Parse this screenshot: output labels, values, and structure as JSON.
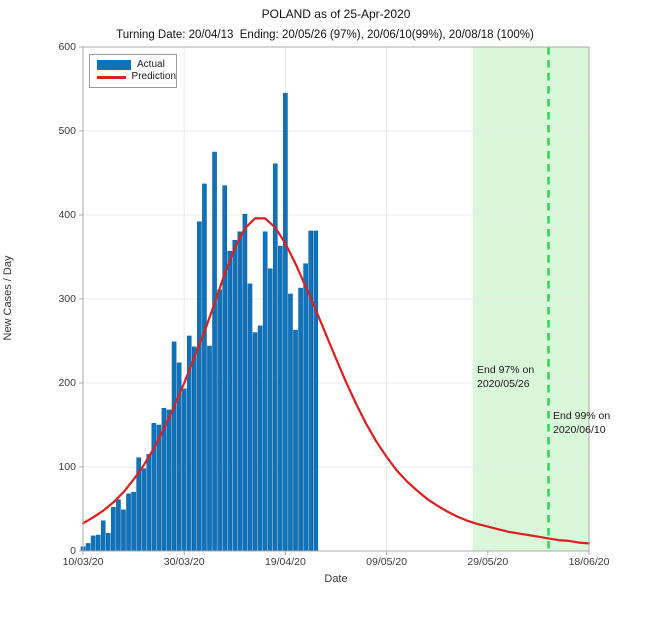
{
  "header": {
    "title": "POLAND as of 25-Apr-2020",
    "subtitle": "Turning Date: 20/04/13  Ending: 20/05/26 (97%), 20/06/10(99%), 20/08/18 (100%)"
  },
  "axes": {
    "xlabel": "Date",
    "ylabel": "New Cases / Day"
  },
  "legend": {
    "items": [
      {
        "label": "Actual",
        "type": "bar",
        "color": "#0e72bd"
      },
      {
        "label": "Prediction",
        "type": "line",
        "color": "#dc1f1f"
      }
    ]
  },
  "annotations": {
    "end97": {
      "line1": "End 97% on",
      "line2": "2020/05/26"
    },
    "end99": {
      "line1": "End 99% on",
      "line2": "2020/06/10"
    }
  },
  "colors": {
    "bar": "#0e72bd",
    "bar_edge": "#0a5a96",
    "prediction_line": "#dc1f1f",
    "end_region_fill": "#d9f7d9",
    "end99_line": "#2fd64f",
    "axis_box": "#ababab",
    "gridline": "#ebebeb",
    "tick_text": "#3a3a3a"
  },
  "chart_data": {
    "type": "bar",
    "title": "POLAND as of 25-Apr-2020",
    "subtitle": "Turning Date: 20/04/13  Ending: 20/05/26 (97%), 20/06/10(99%), 20/08/18 (100%)",
    "xlabel": "Date",
    "ylabel": "New Cases / Day",
    "ylim": [
      0,
      600
    ],
    "xlim_days": [
      0,
      100
    ],
    "x_ticks": [
      "10/03/20",
      "30/03/20",
      "19/04/20",
      "09/05/20",
      "29/05/20",
      "18/06/20"
    ],
    "x_tick_days": [
      0,
      20,
      40,
      60,
      80,
      100
    ],
    "y_ticks": [
      0,
      100,
      200,
      300,
      400,
      500,
      600
    ],
    "grid": "on",
    "legend_position": "top-left",
    "series": [
      {
        "name": "Actual",
        "kind": "bar",
        "color": "#0e72bd",
        "start_date": "2020-03-10",
        "end_date": "2020-04-25",
        "x_days": [
          0,
          1,
          2,
          3,
          4,
          5,
          6,
          7,
          8,
          9,
          10,
          11,
          12,
          13,
          14,
          15,
          16,
          17,
          18,
          19,
          20,
          21,
          22,
          23,
          24,
          25,
          26,
          27,
          28,
          29,
          30,
          31,
          32,
          33,
          34,
          35,
          36,
          37,
          38,
          39,
          40,
          41,
          42,
          43,
          44,
          45,
          46
        ],
        "values": [
          5,
          9,
          18,
          19,
          36,
          21,
          52,
          61,
          49,
          68,
          70,
          111,
          98,
          115,
          152,
          150,
          170,
          168,
          249,
          224,
          193,
          256,
          243,
          392,
          437,
          244,
          475,
          311,
          435,
          357,
          370,
          380,
          401,
          318,
          260,
          268,
          380,
          336,
          461,
          363,
          545,
          306,
          263,
          313,
          342,
          381,
          381
        ]
      },
      {
        "name": "Prediction",
        "kind": "line",
        "color": "#dc1f1f",
        "peak_value": 397,
        "peak_day": 34,
        "turning_date": "20/04/13",
        "x_days": [
          0,
          2,
          4,
          6,
          8,
          10,
          12,
          14,
          16,
          18,
          20,
          22,
          24,
          26,
          28,
          30,
          32,
          34,
          36,
          38,
          40,
          42,
          44,
          46,
          48,
          50,
          52,
          54,
          56,
          58,
          60,
          62,
          64,
          66,
          68,
          70,
          72,
          74,
          76,
          78,
          80,
          82,
          84,
          86,
          88,
          90,
          92,
          94,
          96,
          98,
          100
        ],
        "values": [
          33,
          40,
          48,
          58,
          70,
          85,
          102,
          122,
          146,
          172,
          200,
          230,
          261,
          295,
          330,
          361,
          384,
          396,
          396,
          385,
          366,
          342,
          315,
          287,
          258,
          229,
          201,
          175,
          151,
          130,
          112,
          96,
          83,
          72,
          62,
          54,
          47,
          41,
          36,
          32,
          29,
          26,
          23,
          21,
          19,
          17,
          15,
          13,
          12,
          10,
          9
        ]
      }
    ],
    "end_region": {
      "label": "End 97% on 2020/05/26",
      "start_day": 77,
      "end_day": 100,
      "fill": "#d9f7d9"
    },
    "end99_marker": {
      "label": "End 99% on 2020/06/10",
      "day": 92,
      "style": "dashed",
      "color": "#2fd64f"
    }
  }
}
